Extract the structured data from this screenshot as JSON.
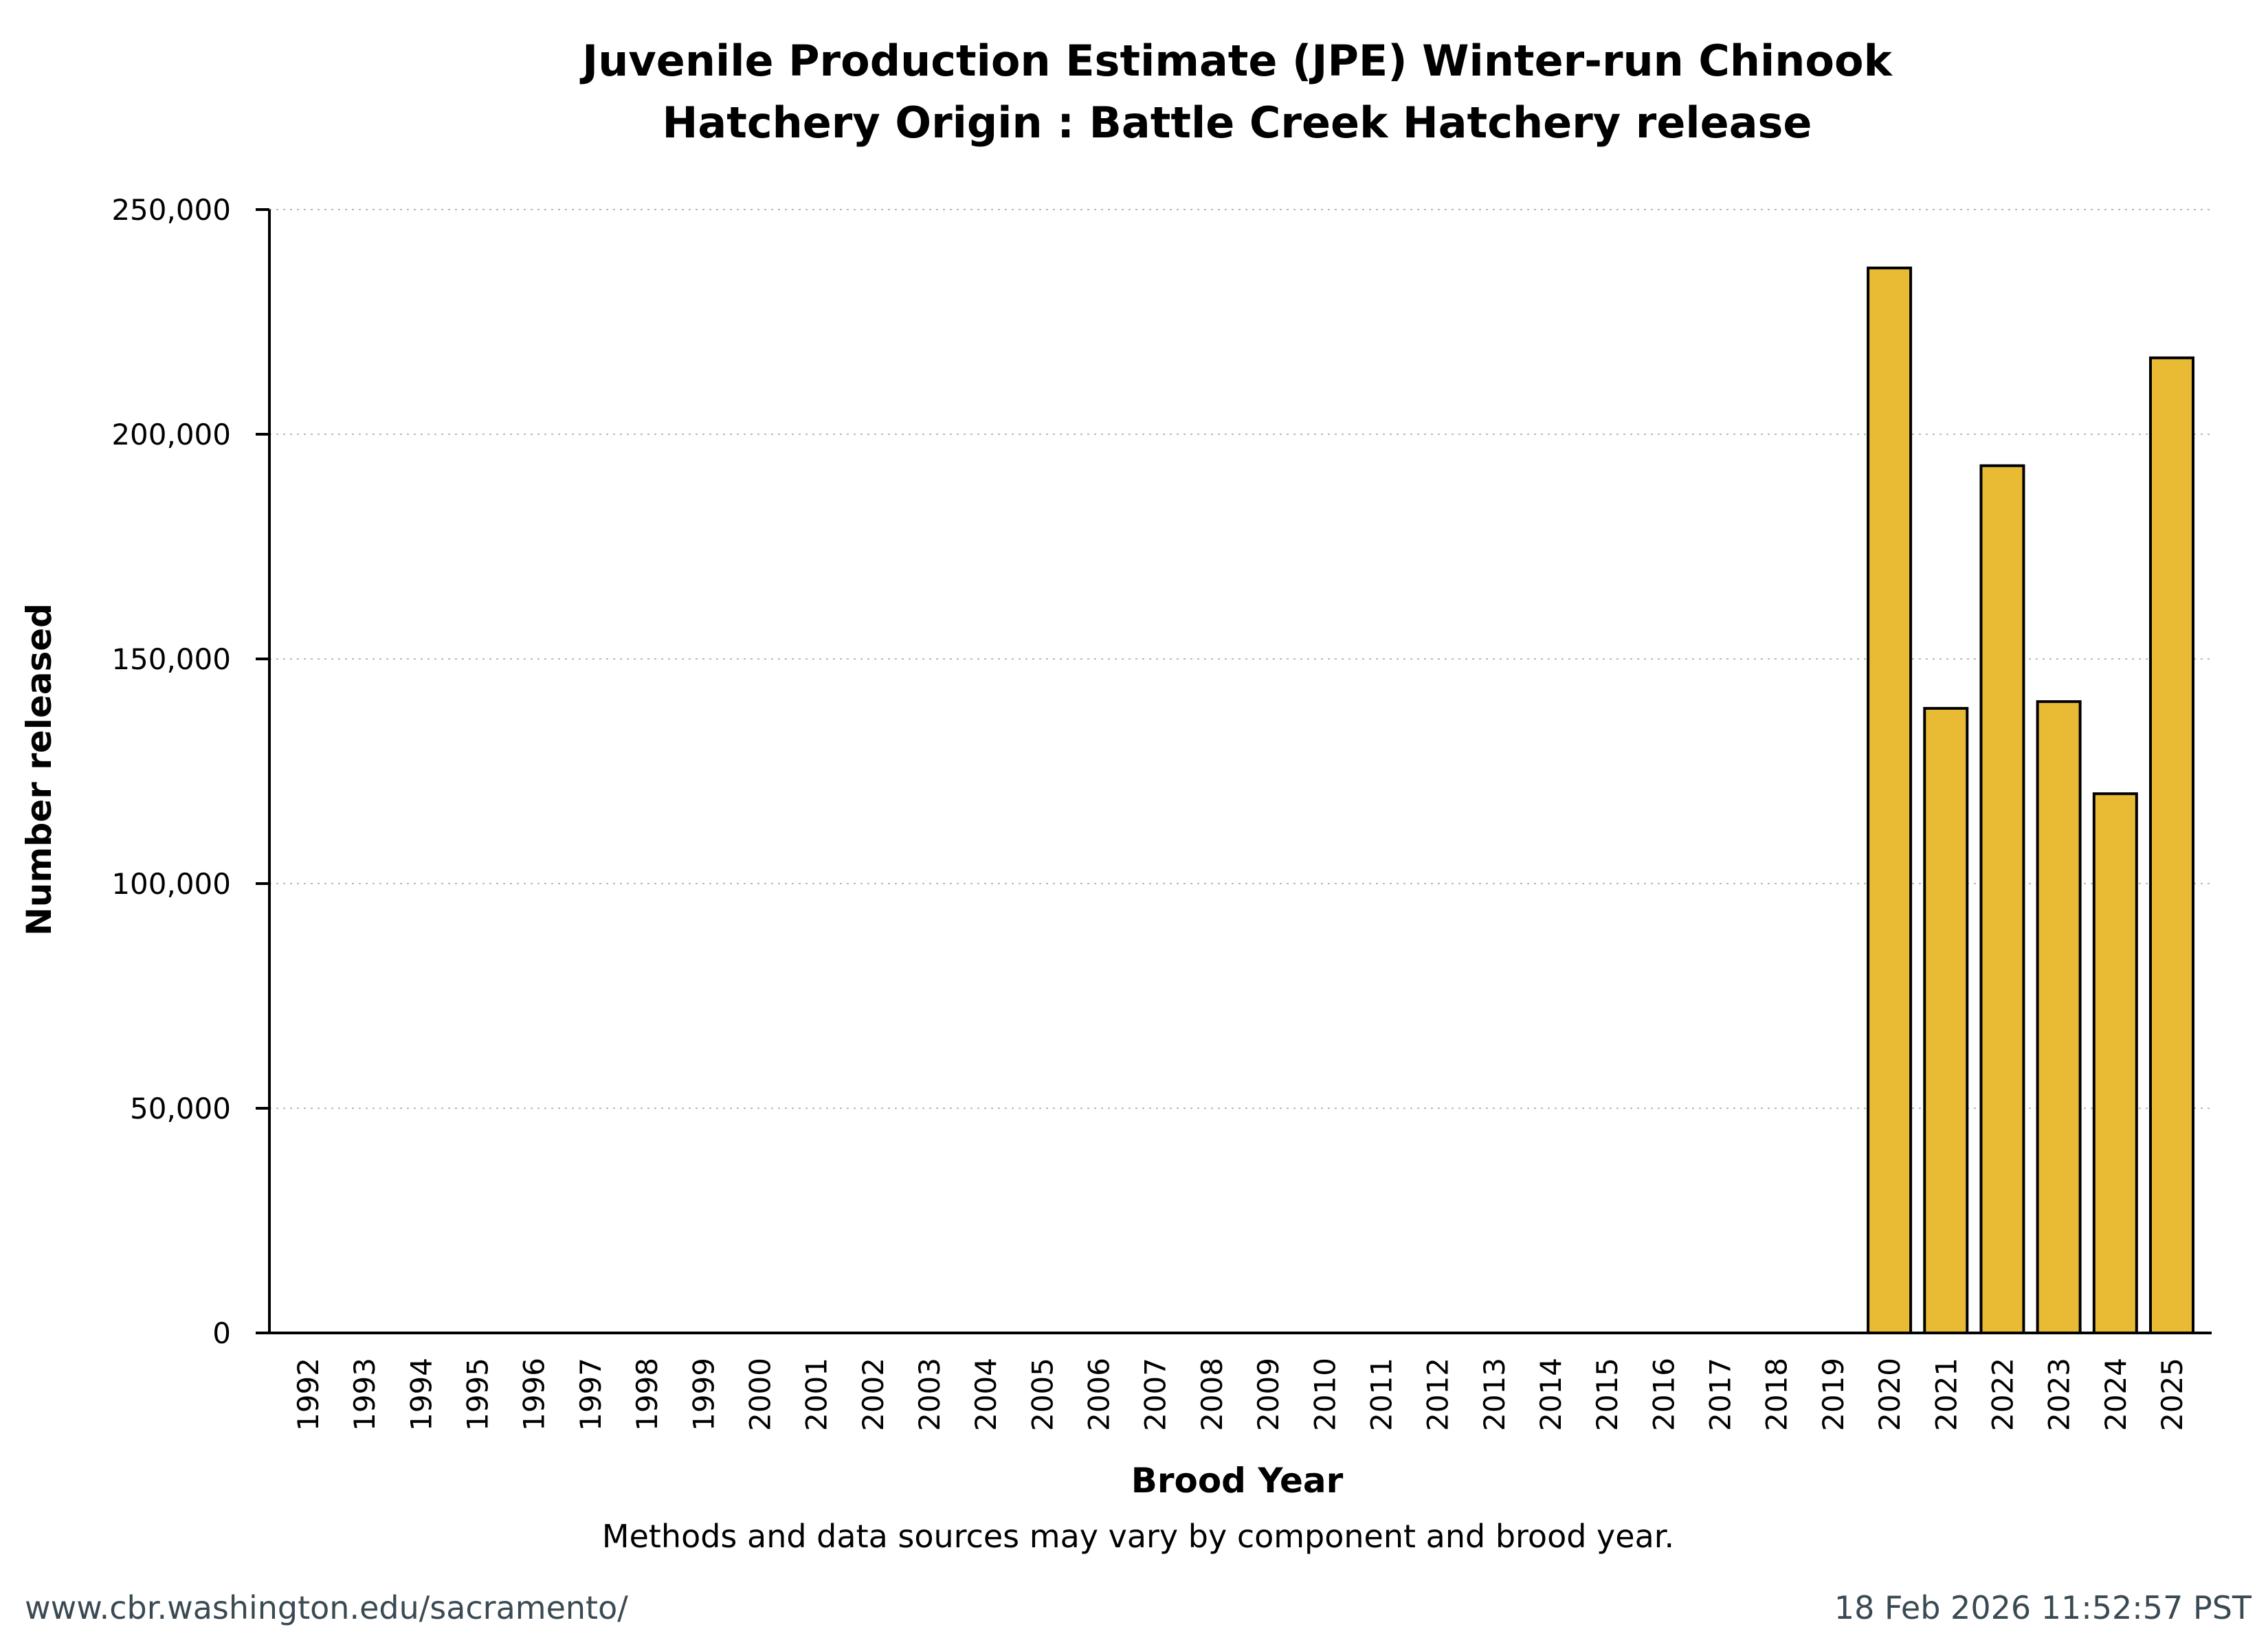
{
  "chart_data": {
    "type": "bar",
    "title": "Juvenile Production Estimate (JPE) Winter-run Chinook",
    "subtitle": "Hatchery Origin : Battle Creek Hatchery release",
    "xlabel": "Brood Year",
    "ylabel": "Number released",
    "ylim": [
      0,
      250000
    ],
    "yticks": [
      0,
      50000,
      100000,
      150000,
      200000,
      250000
    ],
    "ytick_labels": [
      "0",
      "50,000",
      "100,000",
      "150,000",
      "200,000",
      "250,000"
    ],
    "grid": "horizontal dotted",
    "categories": [
      "1992",
      "1993",
      "1994",
      "1995",
      "1996",
      "1997",
      "1998",
      "1999",
      "2000",
      "2001",
      "2002",
      "2003",
      "2004",
      "2005",
      "2006",
      "2007",
      "2008",
      "2009",
      "2010",
      "2011",
      "2012",
      "2013",
      "2014",
      "2015",
      "2016",
      "2017",
      "2018",
      "2019",
      "2020",
      "2021",
      "2022",
      "2023",
      "2024",
      "2025"
    ],
    "values": [
      0,
      0,
      0,
      0,
      0,
      0,
      0,
      0,
      0,
      0,
      0,
      0,
      0,
      0,
      0,
      0,
      0,
      0,
      0,
      0,
      0,
      0,
      0,
      0,
      0,
      0,
      0,
      0,
      237000,
      139000,
      193000,
      140500,
      120000,
      217000
    ],
    "bar_color": "#e9ba33",
    "note": "Methods and data sources may vary by component and brood year."
  },
  "footer": {
    "url": "www.cbr.washington.edu/sacramento/",
    "timestamp": "18 Feb 2026 11:52:57 PST"
  }
}
